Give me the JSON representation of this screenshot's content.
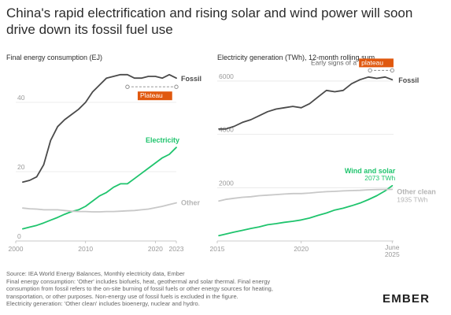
{
  "title": "China's rapid electrification and rising solar and wind power will soon drive down its fossil fuel use",
  "brand": "EMBER",
  "colors": {
    "fossil": "#4a4a4a",
    "electricity": "#1fc46d",
    "other": "#c8c8c8",
    "plateau": "#e0580e",
    "text": "#2b2b2b",
    "muted": "#9a9a9a"
  },
  "footer": {
    "lines": [
      "Source: IEA World Energy Balances, Monthly electricity data, Ember",
      "Final energy consumption: 'Other' includes biofuels, heat, geothermal and solar thermal. Final energy",
      "consumption from fossil refers to the on-site burning of fossil fuels or other energy sources for heating,",
      "transportation, or other purposes. Non-energy use of fossil fuels is excluded in the figure.",
      "Electricity generation: 'Other clean' includes bioenergy, nuclear and hydro."
    ]
  },
  "chart_data": [
    {
      "type": "line",
      "title": "Final energy consumption (EJ)",
      "xlim": [
        2000,
        2023
      ],
      "ylim": [
        0,
        50
      ],
      "x_ticks": [
        "2000",
        "2010",
        "2020",
        "2023"
      ],
      "x_tick_values": [
        2000,
        2010,
        2020,
        2023
      ],
      "y_ticks": [
        "0",
        "20",
        "40"
      ],
      "y_tick_values": [
        0,
        20,
        40
      ],
      "grid": true,
      "series": [
        {
          "name": "Fossil",
          "color": "#4a4a4a",
          "x": [
            2001,
            2002,
            2003,
            2004,
            2005,
            2006,
            2007,
            2008,
            2009,
            2010,
            2011,
            2012,
            2013,
            2014,
            2015,
            2016,
            2017,
            2018,
            2019,
            2020,
            2021,
            2022,
            2023
          ],
          "y": [
            17,
            17.5,
            18.5,
            22,
            29,
            33,
            35,
            36.5,
            38,
            40,
            43,
            45,
            47,
            47.5,
            48,
            48,
            47,
            47,
            47.5,
            47.5,
            47,
            48,
            47
          ]
        },
        {
          "name": "Electricity",
          "color": "#1fc46d",
          "x": [
            2001,
            2002,
            2003,
            2004,
            2005,
            2006,
            2007,
            2008,
            2009,
            2010,
            2011,
            2012,
            2013,
            2014,
            2015,
            2016,
            2017,
            2018,
            2019,
            2020,
            2021,
            2022,
            2023
          ],
          "y": [
            3.5,
            4,
            4.5,
            5.2,
            6,
            6.8,
            7.7,
            8.5,
            9,
            10,
            11.5,
            13,
            14,
            15.5,
            16.5,
            16.5,
            18,
            19.5,
            21,
            22.5,
            24,
            25,
            27
          ]
        },
        {
          "name": "Other",
          "color": "#c8c8c8",
          "x": [
            2001,
            2002,
            2003,
            2004,
            2005,
            2006,
            2007,
            2008,
            2009,
            2010,
            2011,
            2012,
            2013,
            2014,
            2015,
            2016,
            2017,
            2018,
            2019,
            2020,
            2021,
            2022,
            2023
          ],
          "y": [
            9.5,
            9.3,
            9.2,
            9,
            9,
            9,
            8.8,
            8.6,
            8.5,
            8.5,
            8.4,
            8.4,
            8.5,
            8.5,
            8.6,
            8.7,
            8.8,
            9,
            9.2,
            9.6,
            10,
            10.5,
            11
          ]
        }
      ],
      "annotation": {
        "label": "Plateau",
        "x_start": 2016,
        "x_end": 2023,
        "y": 44.5
      }
    },
    {
      "type": "line",
      "title": "Electricity generation (TWh), 12-month rolling sum",
      "xlim": [
        2015,
        2025.5
      ],
      "ylim": [
        0,
        6500
      ],
      "x_ticks": [
        "2015",
        "2020",
        "June 2025"
      ],
      "x_tick_values": [
        2015,
        2020,
        2025.42
      ],
      "y_ticks": [
        "2000",
        "4000",
        "6000"
      ],
      "y_tick_values": [
        2000,
        4000,
        6000
      ],
      "grid": true,
      "series": [
        {
          "name": "Fossil",
          "color": "#4a4a4a",
          "x": [
            2015.1,
            2015.5,
            2016,
            2016.5,
            2017,
            2017.5,
            2018,
            2018.5,
            2019,
            2019.5,
            2020,
            2020.5,
            2021,
            2021.5,
            2022,
            2022.5,
            2023,
            2023.5,
            2024,
            2024.5,
            2025,
            2025.42
          ],
          "y": [
            4200,
            4200,
            4300,
            4450,
            4550,
            4700,
            4850,
            4950,
            5000,
            5050,
            5000,
            5150,
            5400,
            5650,
            5600,
            5650,
            5900,
            6050,
            6150,
            6100,
            6150,
            6050
          ]
        },
        {
          "name": "Wind and solar",
          "color": "#1fc46d",
          "x": [
            2015.1,
            2015.5,
            2016,
            2016.5,
            2017,
            2017.5,
            2018,
            2018.5,
            2019,
            2019.5,
            2020,
            2020.5,
            2021,
            2021.5,
            2022,
            2022.5,
            2023,
            2023.5,
            2024,
            2024.5,
            2025,
            2025.42
          ],
          "y": [
            200,
            260,
            330,
            400,
            470,
            530,
            610,
            650,
            700,
            740,
            790,
            860,
            960,
            1050,
            1160,
            1230,
            1320,
            1420,
            1550,
            1700,
            1880,
            2073
          ]
        },
        {
          "name": "Other clean",
          "color": "#c8c8c8",
          "x": [
            2015.1,
            2015.5,
            2016,
            2016.5,
            2017,
            2017.5,
            2018,
            2018.5,
            2019,
            2019.5,
            2020,
            2020.5,
            2021,
            2021.5,
            2022,
            2022.5,
            2023,
            2023.5,
            2024,
            2024.5,
            2025,
            2025.42
          ],
          "y": [
            1500,
            1560,
            1600,
            1640,
            1660,
            1700,
            1720,
            1740,
            1760,
            1780,
            1780,
            1800,
            1830,
            1850,
            1860,
            1880,
            1890,
            1900,
            1920,
            1930,
            1935,
            1935
          ]
        }
      ],
      "end_labels": {
        "wind_solar_value": "2073 TWh",
        "other_clean_value": "1935 TWh"
      },
      "annotation": {
        "label_prefix": "Early signs of a",
        "label": "plateau",
        "x_start": 2024.1,
        "x_end": 2025.42,
        "y": 6400
      }
    }
  ]
}
